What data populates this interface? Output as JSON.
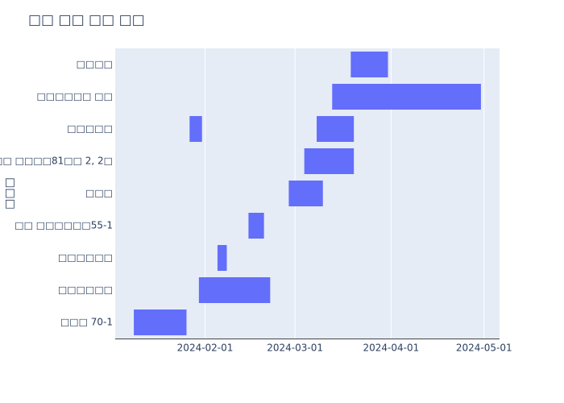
{
  "chart_data": {
    "type": "timeline",
    "title": "□□ □□ □□ □□",
    "y_label": "□□□",
    "series": [
      {
        "name": "□□□ 70-1",
        "intervals": [
          [
            "2024-01-09",
            "2024-01-26"
          ]
        ]
      },
      {
        "name": "□□□□□□",
        "intervals": [
          [
            "2024-01-30",
            "2024-02-22"
          ]
        ]
      },
      {
        "name": "□□□□□□",
        "intervals": [
          [
            "2024-02-05",
            "2024-02-08"
          ]
        ]
      },
      {
        "name": "□□ □□□□□□55-1",
        "intervals": [
          [
            "2024-02-15",
            "2024-02-20"
          ]
        ]
      },
      {
        "name": "□□□",
        "intervals": [
          [
            "2024-02-28",
            "2024-03-10"
          ]
        ]
      },
      {
        "name": "□□ □□□□81□□ 2, 2□",
        "intervals": [
          [
            "2024-03-04",
            "2024-03-20"
          ]
        ]
      },
      {
        "name": "□□□□□",
        "intervals": [
          [
            "2024-01-27",
            "2024-01-31"
          ],
          [
            "2024-03-08",
            "2024-03-20"
          ]
        ]
      },
      {
        "name": "□□□□□□ □□",
        "intervals": [
          [
            "2024-03-13",
            "2024-04-30"
          ]
        ]
      },
      {
        "name": "□□□□",
        "intervals": [
          [
            "2024-03-19",
            "2024-03-31"
          ]
        ]
      }
    ],
    "color": "#636efa",
    "xlim": [
      "2024-01-03",
      "2024-05-06"
    ],
    "xticks": [
      "2024-02-01",
      "2024-03-01",
      "2024-04-01",
      "2024-05-01"
    ],
    "grid": true
  }
}
